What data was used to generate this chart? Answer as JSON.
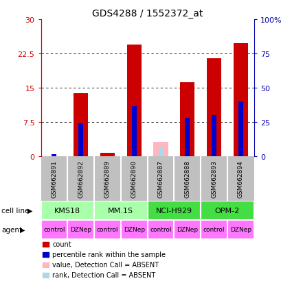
{
  "title": "GDS4288 / 1552372_at",
  "samples": [
    "GSM662891",
    "GSM662892",
    "GSM662889",
    "GSM662890",
    "GSM662887",
    "GSM662888",
    "GSM662893",
    "GSM662894"
  ],
  "count_values": [
    0.0,
    13.8,
    0.8,
    24.5,
    0.0,
    16.2,
    21.5,
    24.8
  ],
  "rank_values": [
    0.5,
    7.2,
    null,
    11.0,
    null,
    8.5,
    9.0,
    12.0
  ],
  "absent_count": [
    null,
    null,
    null,
    null,
    3.2,
    null,
    null,
    null
  ],
  "absent_rank": [
    null,
    null,
    null,
    null,
    2.2,
    null,
    null,
    null
  ],
  "ylim": [
    0,
    30
  ],
  "yticks": [
    0,
    7.5,
    15,
    22.5,
    30
  ],
  "yticklabels_left": [
    "0",
    "7.5",
    "15",
    "22.5",
    "30"
  ],
  "yticklabels_right": [
    "0",
    "25",
    "50",
    "75",
    "100%"
  ],
  "cell_lines": [
    {
      "label": "KMS18",
      "span": [
        0,
        2
      ],
      "color": "#AAFFAA"
    },
    {
      "label": "MM.1S",
      "span": [
        2,
        4
      ],
      "color": "#AAFFAA"
    },
    {
      "label": "NCI-H929",
      "span": [
        4,
        6
      ],
      "color": "#44DD44"
    },
    {
      "label": "OPM-2",
      "span": [
        6,
        8
      ],
      "color": "#44DD44"
    }
  ],
  "agents": [
    "control",
    "DZNep",
    "control",
    "DZNep",
    "control",
    "DZNep",
    "control",
    "DZNep"
  ],
  "bar_width": 0.55,
  "rank_bar_width": 0.18,
  "count_color": "#CC0000",
  "rank_color": "#0000CC",
  "absent_count_color": "#FFB6C1",
  "absent_rank_color": "#ADD8E6",
  "bg_color": "#FFFFFF",
  "left_axis_color": "#CC0000",
  "right_axis_color": "#0000AA",
  "sample_box_color": "#C0C0C0",
  "agent_color": "#FF77FF",
  "legend_items": [
    {
      "label": "count",
      "color": "#CC0000"
    },
    {
      "label": "percentile rank within the sample",
      "color": "#0000CC"
    },
    {
      "label": "value, Detection Call = ABSENT",
      "color": "#FFB6C1"
    },
    {
      "label": "rank, Detection Call = ABSENT",
      "color": "#ADD8E6"
    }
  ],
  "cell_line_label": "cell line",
  "agent_label": "agent"
}
